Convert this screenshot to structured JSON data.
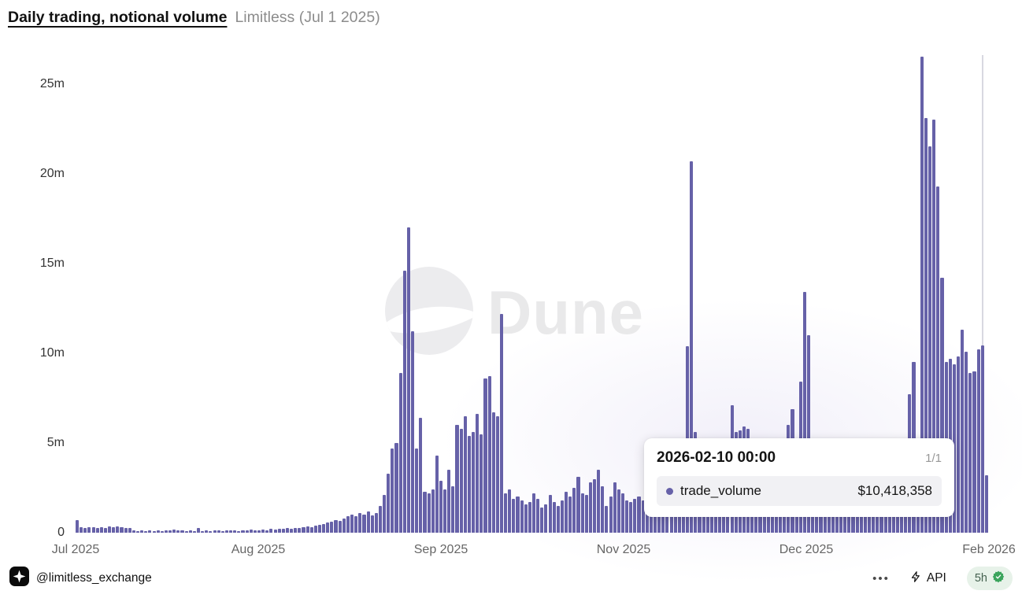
{
  "header": {
    "title": "Daily trading, notional volume",
    "subtitle": "Limitless (Jul 1 2025)"
  },
  "chart_data": {
    "type": "bar",
    "title": "Daily trading, notional volume",
    "subtitle": "Limitless (Jul 1 2025)",
    "series_name": "trade_volume",
    "unit": "USD, millions",
    "frequency": "daily",
    "start_date": "2025-07-01",
    "end_date": "2026-02-11",
    "bar_color": "#6661a8",
    "grid": false,
    "legend_position": "none",
    "ylim": [
      0,
      26.6
    ],
    "y_ticks": [
      "0",
      "5m",
      "10m",
      "15m",
      "20m",
      "25m"
    ],
    "y_tick_values": [
      0,
      5,
      10,
      15,
      20,
      25
    ],
    "x_ticks": [
      {
        "label": "Jul 2025",
        "index": 0
      },
      {
        "label": "Aug 2025",
        "index": 45
      },
      {
        "label": "Sep 2025",
        "index": 90
      },
      {
        "label": "Nov 2025",
        "index": 135
      },
      {
        "label": "Dec 2025",
        "index": 180
      },
      {
        "label": "Feb 2026",
        "index": 225
      }
    ],
    "values_millions": [
      0.7,
      0.3,
      0.28,
      0.32,
      0.3,
      0.26,
      0.3,
      0.28,
      0.34,
      0.3,
      0.36,
      0.3,
      0.28,
      0.25,
      0.15,
      0.1,
      0.12,
      0.1,
      0.14,
      0.1,
      0.12,
      0.1,
      0.15,
      0.12,
      0.18,
      0.12,
      0.15,
      0.1,
      0.12,
      0.1,
      0.25,
      0.1,
      0.12,
      0.1,
      0.14,
      0.12,
      0.1,
      0.12,
      0.15,
      0.12,
      0.1,
      0.14,
      0.12,
      0.16,
      0.12,
      0.15,
      0.18,
      0.15,
      0.2,
      0.18,
      0.22,
      0.2,
      0.25,
      0.22,
      0.28,
      0.25,
      0.3,
      0.35,
      0.3,
      0.4,
      0.45,
      0.5,
      0.55,
      0.6,
      0.7,
      0.65,
      0.8,
      0.9,
      1.0,
      0.9,
      1.1,
      1.0,
      1.2,
      0.95,
      1.1,
      1.5,
      2.1,
      3.3,
      4.7,
      5.0,
      8.9,
      14.6,
      17.0,
      11.2,
      4.7,
      6.4,
      2.3,
      2.2,
      2.4,
      4.3,
      2.9,
      2.4,
      3.5,
      2.6,
      6.0,
      5.8,
      6.5,
      5.4,
      5.6,
      6.6,
      5.5,
      8.6,
      8.7,
      6.7,
      6.5,
      12.2,
      2.2,
      2.4,
      1.9,
      2.0,
      1.8,
      1.6,
      1.7,
      2.2,
      1.9,
      1.4,
      1.6,
      2.1,
      1.7,
      1.5,
      1.8,
      2.3,
      2.0,
      2.5,
      3.1,
      2.2,
      2.1,
      2.8,
      3.0,
      3.5,
      2.6,
      1.5,
      2.0,
      2.8,
      2.4,
      2.2,
      1.8,
      1.7,
      1.9,
      2.0,
      1.8,
      2.1,
      1.9,
      1.7,
      1.8,
      2.0,
      1.9,
      2.1,
      2.0,
      1.8,
      2.2,
      10.4,
      20.7,
      5.6,
      3.0,
      2.5,
      2.2,
      2.0,
      1.8,
      2.1,
      1.9,
      2.3,
      7.1,
      5.6,
      5.7,
      5.9,
      5.8,
      2.5,
      2.2,
      2.0,
      1.9,
      2.1,
      1.8,
      2.0,
      2.2,
      1.9,
      6.0,
      6.9,
      2.5,
      8.4,
      13.4,
      11.0,
      3.0,
      2.5,
      2.2,
      2.0,
      1.8,
      2.1,
      1.9,
      2.3,
      2.0,
      1.8,
      2.2,
      1.9,
      2.1,
      2.4,
      2.0,
      2.2,
      1.9,
      2.5,
      2.3,
      2.6,
      2.4,
      2.8,
      3.0,
      3.2,
      7.7,
      9.5,
      3.5,
      26.5,
      23.1,
      21.5,
      23.0,
      19.3,
      14.2,
      9.5,
      9.7,
      9.4,
      9.8,
      11.3,
      10.1,
      8.9,
      9.0,
      10.2,
      10.418358,
      3.2
    ],
    "hover_index": 224,
    "hover_value_label": "$10,418,358"
  },
  "tooltip": {
    "date": "2026-02-10 00:00",
    "page": "1/1",
    "series_label": "trade_volume",
    "value": "$10,418,358",
    "dot_color": "#6661a8"
  },
  "watermark": {
    "text": "Dune"
  },
  "footer": {
    "account": "@limitless_exchange",
    "menu_icon": "•••",
    "api_label": "API",
    "refresh_label": "5h",
    "refresh_badge_colors": {
      "bg": "#e7f2e9",
      "check": "#3aa45c",
      "text": "#44614f"
    }
  }
}
